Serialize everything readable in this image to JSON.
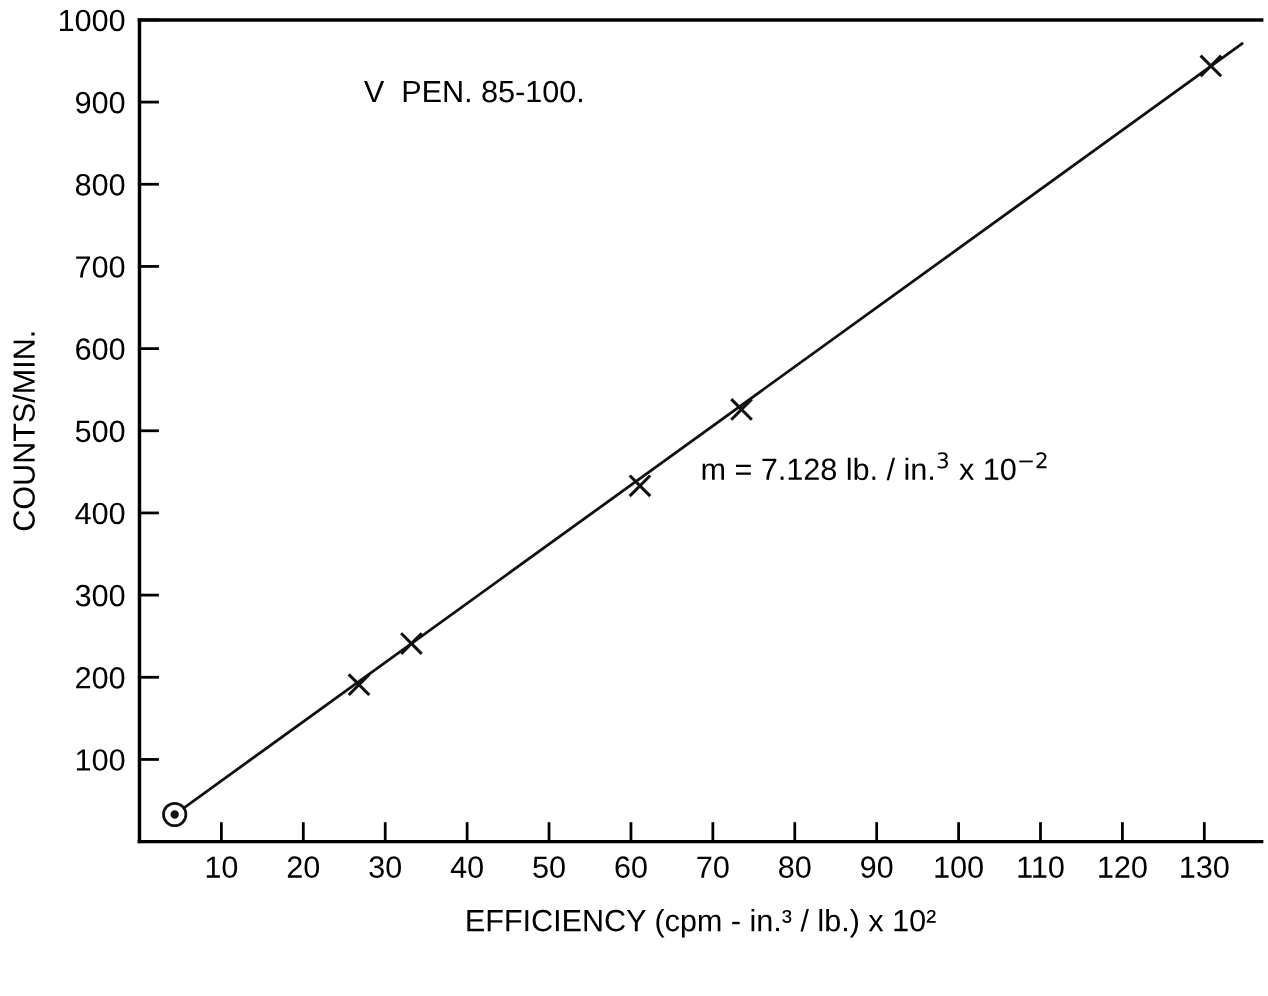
{
  "chart_data": {
    "type": "scatter",
    "xlabel": "EFFICIENCY (cpm - in.³ / lb.) x 10²",
    "ylabel": "COUNTS/MIN.",
    "annotations": [
      "V  PEN. 85-100.",
      "m = 7.128 lb. / in.$^{3}$ x 10$^{−2}$"
    ],
    "series": [
      {
        "type": "line",
        "color": "#111111",
        "x": [
          4.3,
          134.6
        ],
        "values": [
          33,
          971
        ],
        "marker": "none",
        "line_style": "solid"
      },
      {
        "color": "#111111",
        "x": [
          26.8,
          33.2,
          61.1,
          73.5,
          130.8
        ],
        "values": [
          191,
          241,
          433,
          526,
          944
        ],
        "marker": "cross"
      },
      {
        "color": "#111111",
        "x": [
          4.3
        ],
        "values": [
          33
        ],
        "marker": "circle"
      }
    ],
    "xlim": [
      0,
      137
    ],
    "ylim": [
      0,
      1000
    ],
    "xticks": [
      10,
      20,
      30,
      40,
      50,
      60,
      70,
      80,
      90,
      100,
      110,
      120,
      130
    ],
    "yticks": [
      100,
      200,
      300,
      400,
      500,
      600,
      700,
      800,
      900,
      1000
    ],
    "grid": false,
    "legend": false
  }
}
